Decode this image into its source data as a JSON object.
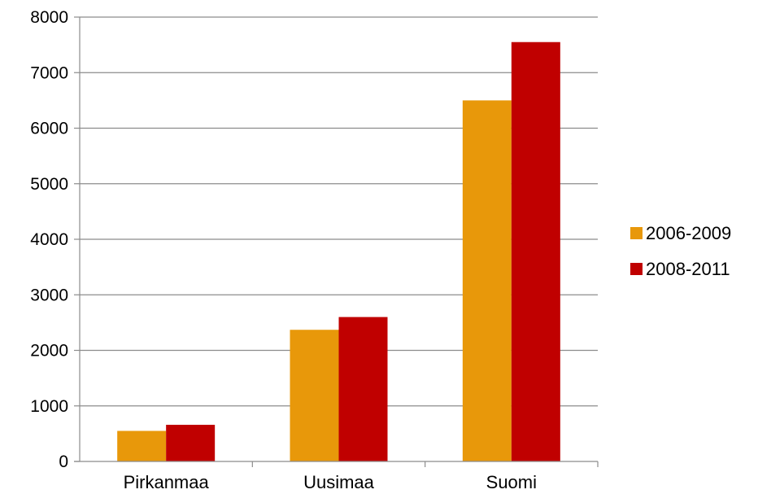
{
  "chart_data": {
    "type": "bar",
    "categories": [
      "Pirkanmaa",
      "Uusimaa",
      "Suomi"
    ],
    "series": [
      {
        "name": "2006-2009",
        "values": [
          550,
          2370,
          6500
        ],
        "color": "#E8980A"
      },
      {
        "name": "2008-2011",
        "values": [
          660,
          2600,
          7550
        ],
        "color": "#C00000"
      }
    ],
    "yticks": [
      "0",
      "1000",
      "2000",
      "3000",
      "4000",
      "5000",
      "6000",
      "7000",
      "8000"
    ],
    "ylim": [
      0,
      8000
    ],
    "grid": true,
    "legend_position": "right",
    "title": "",
    "xlabel": "",
    "ylabel": ""
  }
}
